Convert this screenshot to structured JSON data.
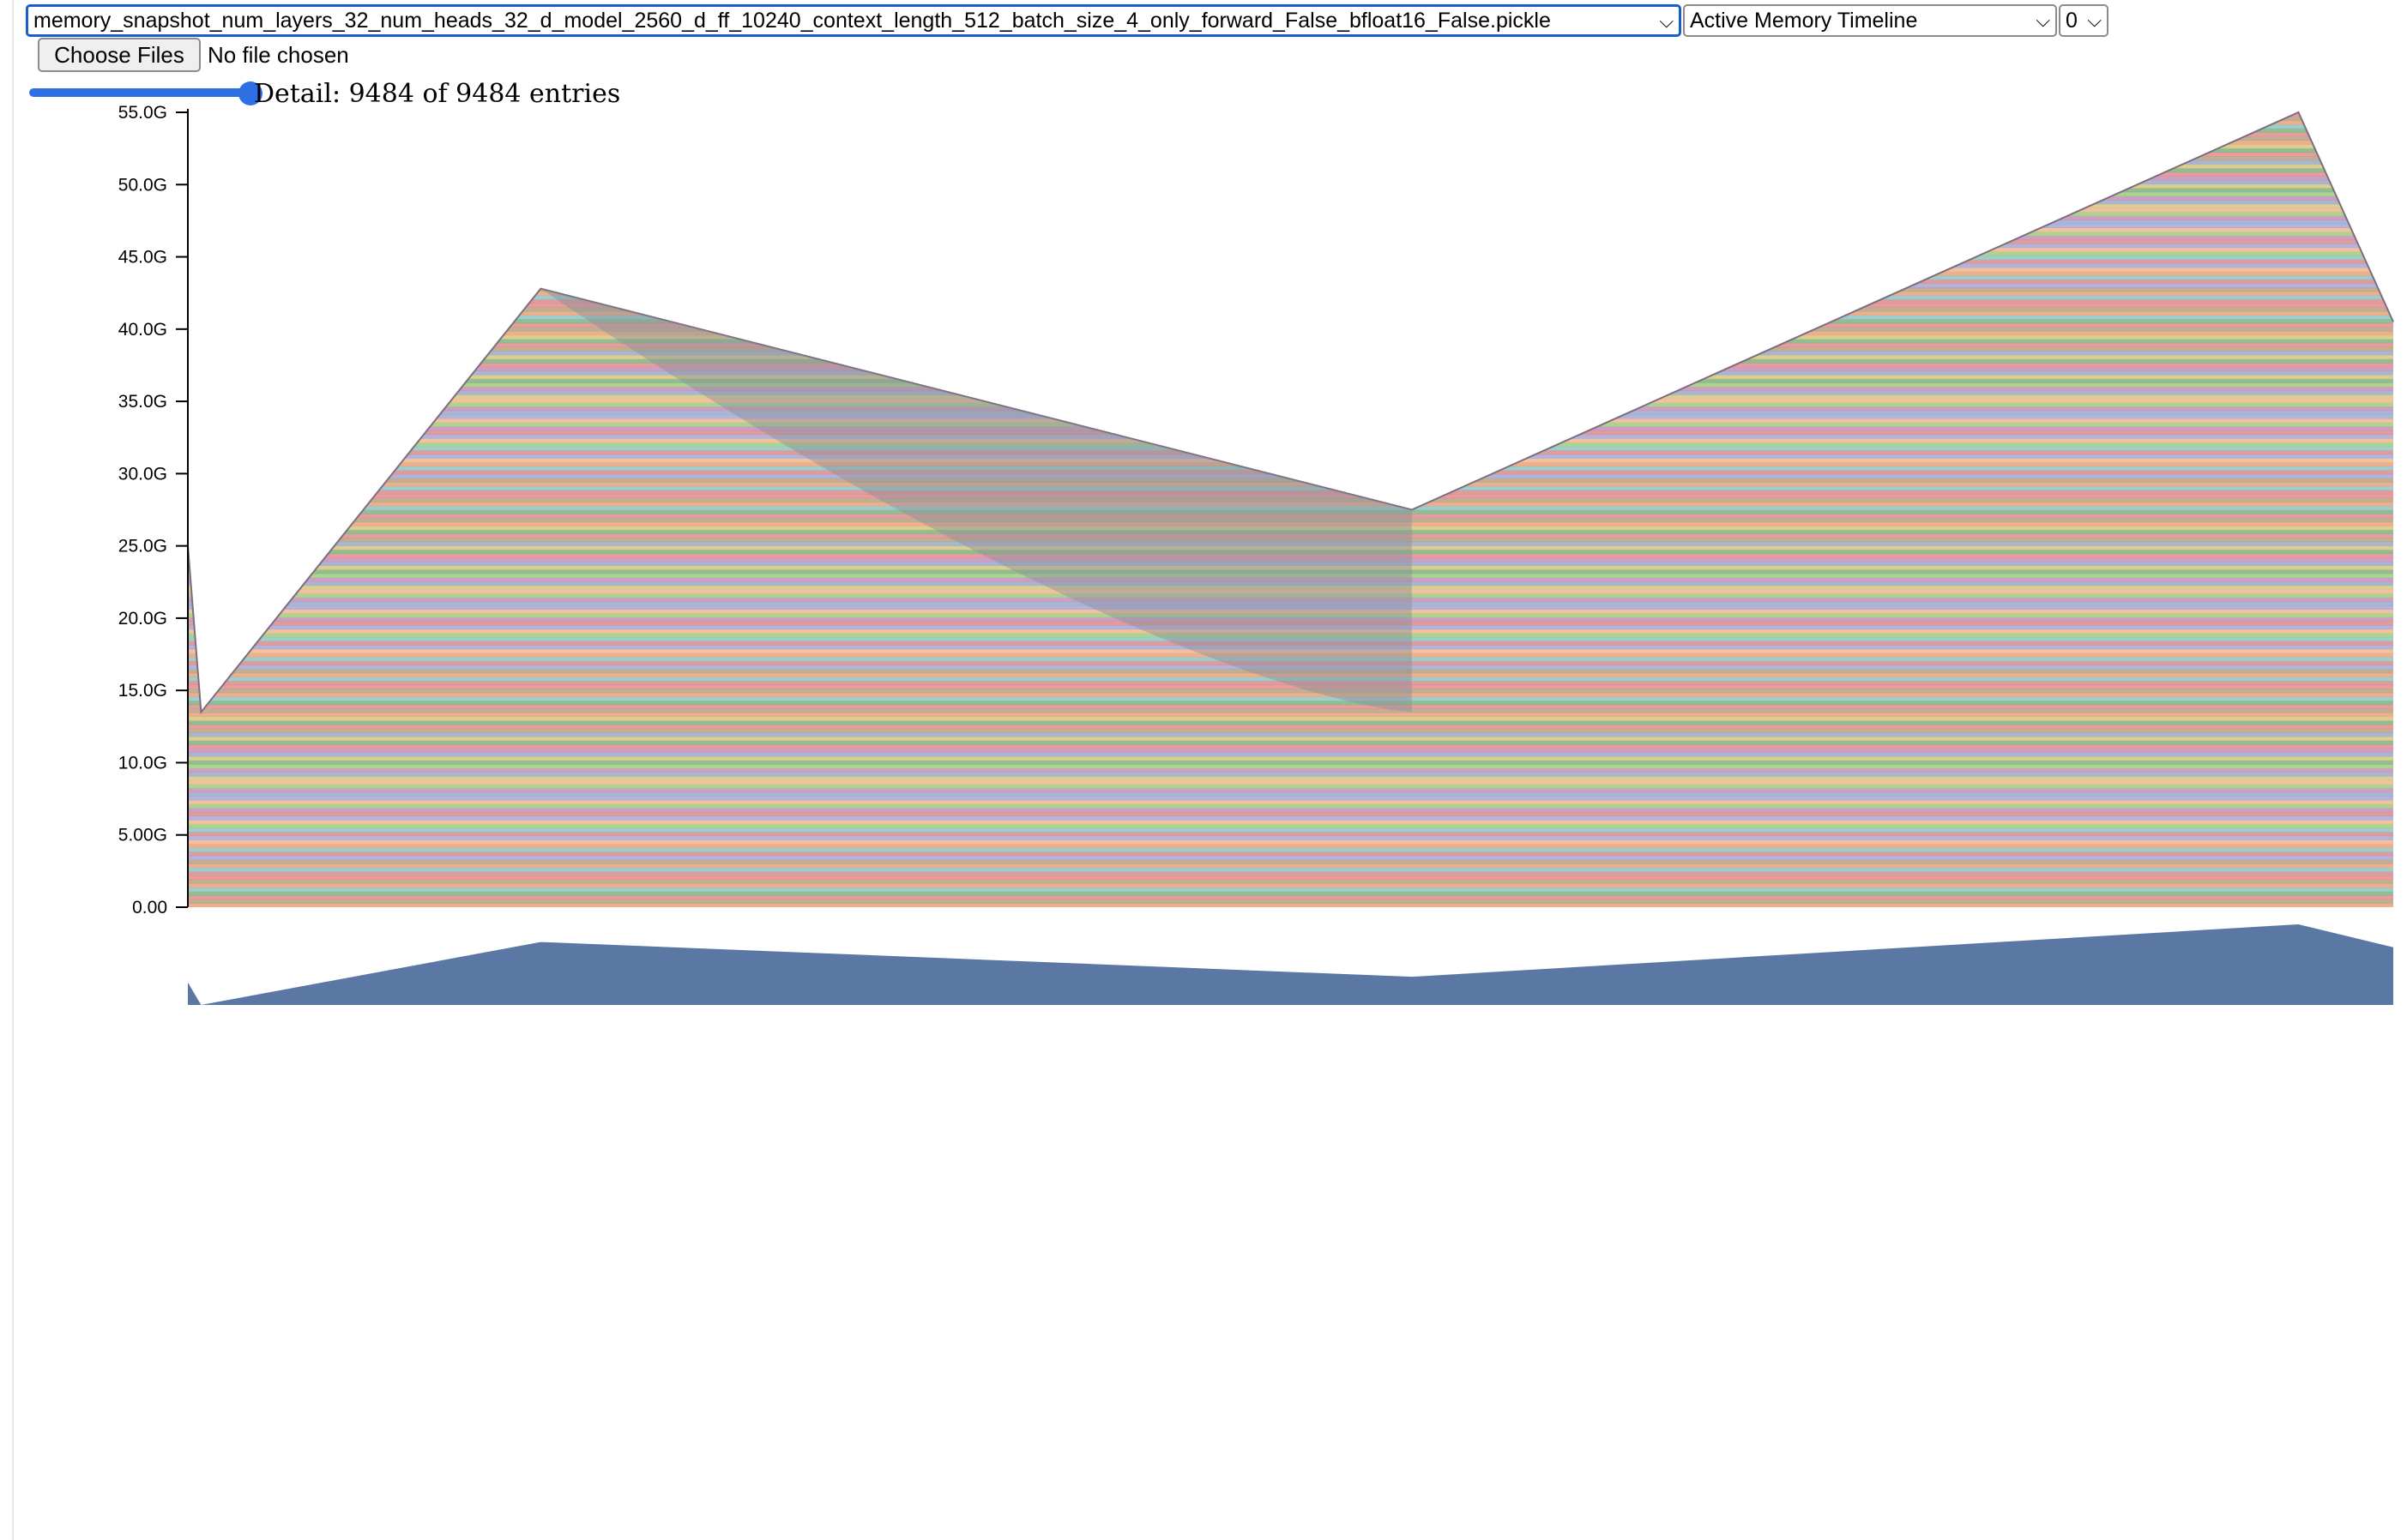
{
  "controls": {
    "file_select": {
      "value": "memory_snapshot_num_layers_32_num_heads_32_d_model_2560_d_ff_10240_context_length_512_batch_size_4_only_forward_False_bfloat16_False.pickle"
    },
    "view_select": {
      "value": "Active Memory Timeline"
    },
    "index_select": {
      "value": "0"
    },
    "choose_files_label": "Choose Files",
    "file_status": "No file chosen",
    "detail_slider": {
      "value": 9484,
      "max": 9484
    },
    "detail_text": "Detail: 9484 of 9484 entries",
    "chevron_glyph": "⌵"
  },
  "chart_data": {
    "type": "area",
    "title": "",
    "xlabel": "",
    "ylabel": "",
    "y_tick_labels": [
      "0.00",
      "5.00G",
      "10.0G",
      "15.0G",
      "20.0G",
      "25.0G",
      "30.0G",
      "35.0G",
      "40.0G",
      "45.0G",
      "50.0G",
      "55.0G"
    ],
    "ylim": [
      0,
      55
    ],
    "y_unit": "G",
    "stacked_allocation_entries": 9484,
    "total_memory_series": {
      "x": [
        0,
        0.006,
        0.16,
        0.555,
        0.957,
        1.0
      ],
      "y": [
        25.0,
        13.5,
        42.8,
        27.5,
        55.0,
        40.5
      ]
    },
    "segments": [
      {
        "type": "spike",
        "x_start": 0,
        "x_end": 0.006,
        "y_start": 25.0,
        "y_end": 13.5
      },
      {
        "type": "rise",
        "x_start": 0.006,
        "x_end": 0.16,
        "y_start": 13.5,
        "y_end": 42.8
      },
      {
        "type": "decline",
        "x_start": 0.16,
        "x_end": 0.555,
        "y_start": 42.8,
        "y_end": 27.5
      },
      {
        "type": "rise",
        "x_start": 0.555,
        "x_end": 0.957,
        "y_start": 27.5,
        "y_end": 55.0
      },
      {
        "type": "drop",
        "x_start": 0.957,
        "x_end": 1.0,
        "y_start": 55.0,
        "y_end": 40.5
      }
    ],
    "inner_boundary": {
      "x": [
        0.16,
        0.555
      ],
      "y": [
        42.8,
        13.5
      ]
    },
    "overview_color": "#5b78a4",
    "palette": [
      "#e9a27a",
      "#9ccc7e",
      "#e38c8c",
      "#a6a6d6",
      "#d6c67e",
      "#8cc4c4",
      "#c78eb8",
      "#b5a17f",
      "#f0b78f",
      "#7fb27f",
      "#d98b8b",
      "#9aa9c9"
    ]
  }
}
